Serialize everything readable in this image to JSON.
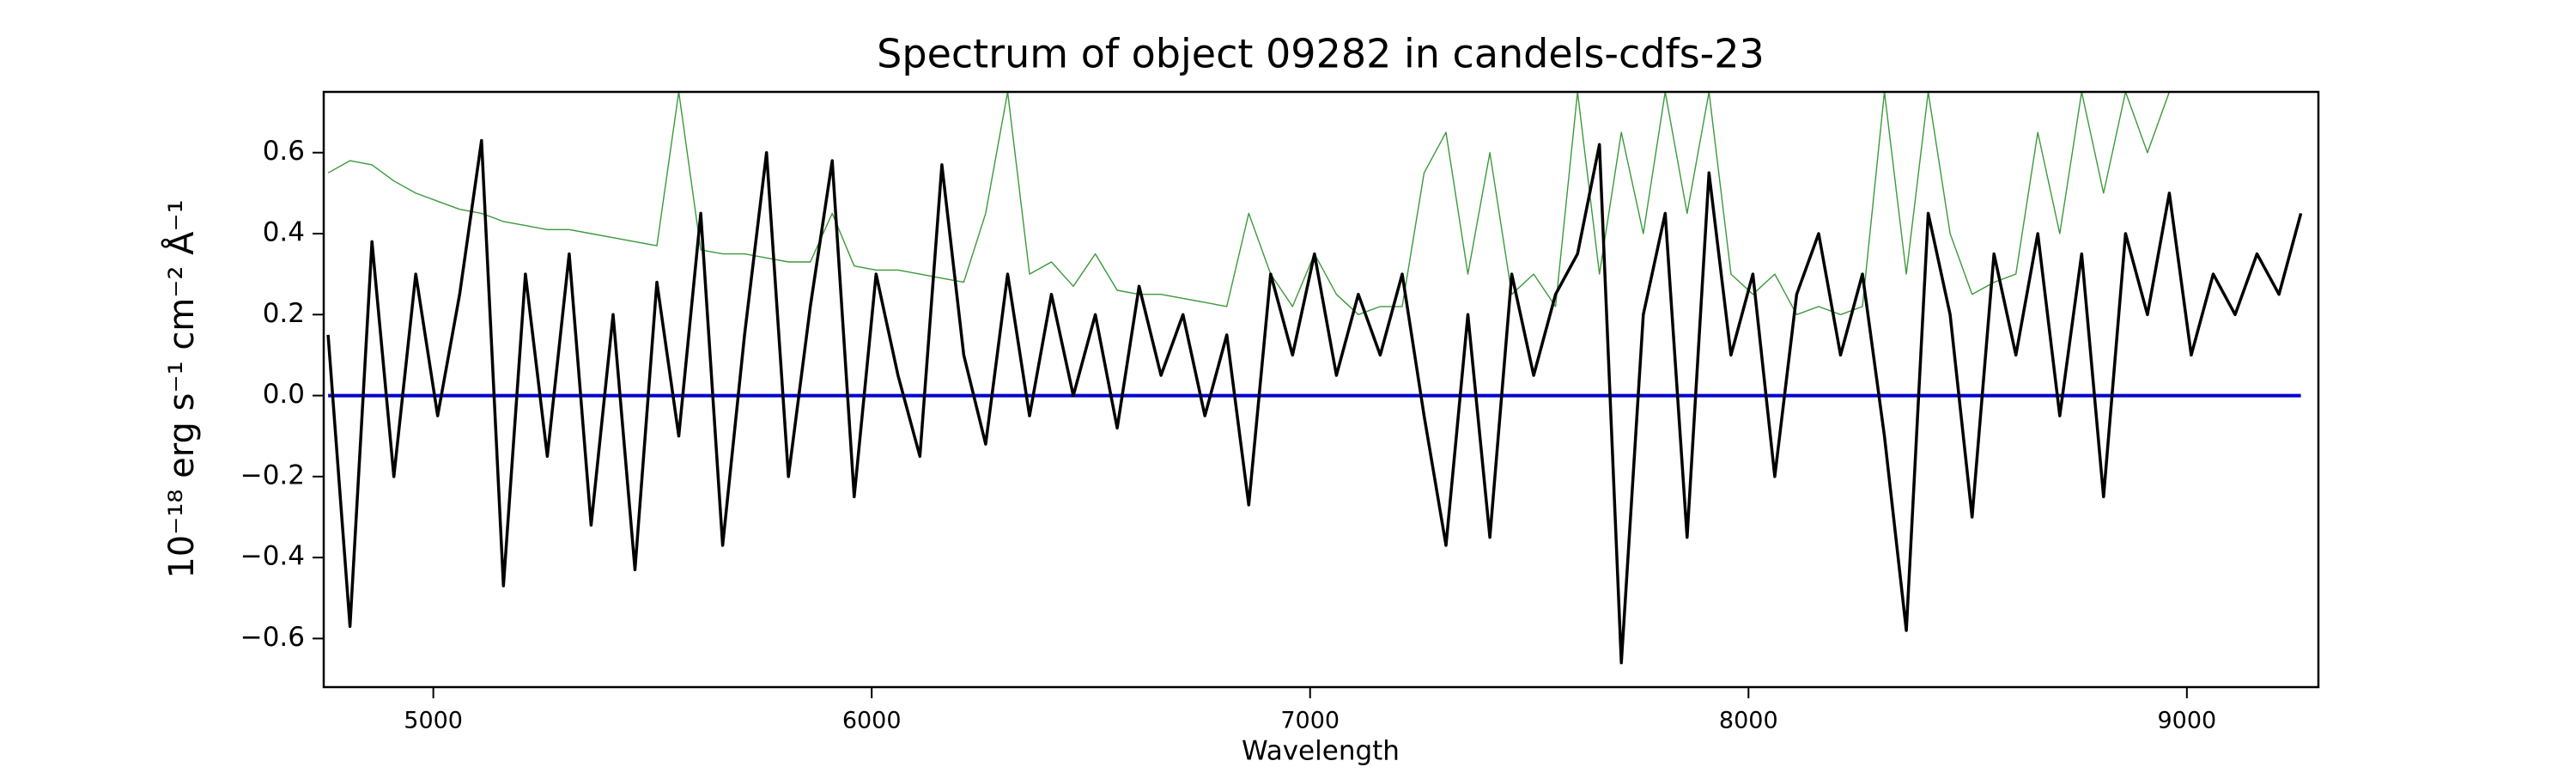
{
  "chart_data": {
    "type": "line",
    "title": "Spectrum of object 09282 in candels-cdfs-23",
    "xlabel": "Wavelength",
    "ylabel": "10⁻¹⁸ erg s⁻¹ cm⁻² Å⁻¹",
    "x": [
      4760,
      4810,
      4860,
      4910,
      4960,
      5010,
      5060,
      5110,
      5160,
      5210,
      5260,
      5310,
      5360,
      5410,
      5460,
      5510,
      5560,
      5610,
      5660,
      5710,
      5760,
      5810,
      5860,
      5910,
      5960,
      6010,
      6060,
      6110,
      6160,
      6210,
      6260,
      6310,
      6360,
      6410,
      6460,
      6510,
      6560,
      6610,
      6660,
      6710,
      6760,
      6810,
      6860,
      6910,
      6960,
      7010,
      7060,
      7110,
      7160,
      7210,
      7260,
      7310,
      7360,
      7410,
      7460,
      7510,
      7560,
      7610,
      7660,
      7710,
      7760,
      7810,
      7860,
      7910,
      7960,
      8010,
      8060,
      8110,
      8160,
      8210,
      8260,
      8310,
      8360,
      8410,
      8460,
      8510,
      8560,
      8610,
      8660,
      8710,
      8760,
      8810,
      8860,
      8910,
      8960,
      9010,
      9060,
      9110,
      9160,
      9210,
      9260
    ],
    "series": [
      {
        "color": "#3a9a3a",
        "width": 1.4,
        "values": [
          0.55,
          0.58,
          0.57,
          0.53,
          0.5,
          0.48,
          0.46,
          0.45,
          0.43,
          0.42,
          0.41,
          0.41,
          0.4,
          0.39,
          0.38,
          0.37,
          0.75,
          0.36,
          0.35,
          0.35,
          0.34,
          0.33,
          0.33,
          0.45,
          0.32,
          0.31,
          0.31,
          0.3,
          0.29,
          0.28,
          0.45,
          0.75,
          0.3,
          0.33,
          0.27,
          0.35,
          0.26,
          0.25,
          0.25,
          0.24,
          0.23,
          0.22,
          0.45,
          0.3,
          0.22,
          0.35,
          0.25,
          0.2,
          0.22,
          0.22,
          0.55,
          0.65,
          0.3,
          0.6,
          0.25,
          0.3,
          0.22,
          0.75,
          0.3,
          0.65,
          0.4,
          0.75,
          0.45,
          0.75,
          0.3,
          0.25,
          0.3,
          0.2,
          0.22,
          0.2,
          0.22,
          0.75,
          0.3,
          0.75,
          0.4,
          0.25,
          0.28,
          0.3,
          0.65,
          0.4,
          0.75,
          0.5,
          0.75,
          0.6,
          0.75,
          null,
          null,
          null,
          null,
          null,
          null
        ]
      },
      {
        "color": "#0000cc",
        "width": 4,
        "values": [
          0,
          0,
          0,
          0,
          0,
          0,
          0,
          0,
          0,
          0,
          0,
          0,
          0,
          0,
          0,
          0,
          0,
          0,
          0,
          0,
          0,
          0,
          0,
          0,
          0,
          0,
          0,
          0,
          0,
          0,
          0,
          0,
          0,
          0,
          0,
          0,
          0,
          0,
          0,
          0,
          0,
          0,
          0,
          0,
          0,
          0,
          0,
          0,
          0,
          0,
          0,
          0,
          0,
          0,
          0,
          0,
          0,
          0,
          0,
          0,
          0,
          0,
          0,
          0,
          0,
          0,
          0,
          0,
          0,
          0,
          0,
          0,
          0,
          0,
          0,
          0,
          0,
          0,
          0,
          0,
          0,
          0,
          0,
          0,
          0,
          0,
          0,
          0,
          0,
          0,
          0
        ]
      },
      {
        "color": "#000000",
        "width": 3.5,
        "values": [
          0.15,
          -0.57,
          0.38,
          -0.2,
          0.3,
          -0.05,
          0.25,
          0.63,
          -0.47,
          0.3,
          -0.15,
          0.35,
          -0.32,
          0.2,
          -0.43,
          0.28,
          -0.1,
          0.45,
          -0.37,
          0.15,
          0.6,
          -0.2,
          0.22,
          0.58,
          -0.25,
          0.3,
          0.05,
          -0.15,
          0.57,
          0.1,
          -0.12,
          0.3,
          -0.05,
          0.25,
          0.0,
          0.2,
          -0.08,
          0.27,
          0.05,
          0.2,
          -0.05,
          0.15,
          -0.27,
          0.3,
          0.1,
          0.35,
          0.05,
          0.25,
          0.1,
          0.3,
          -0.05,
          -0.37,
          0.2,
          -0.35,
          0.3,
          0.05,
          0.25,
          0.35,
          0.62,
          -0.66,
          0.2,
          0.45,
          -0.35,
          0.55,
          0.1,
          0.3,
          -0.2,
          0.25,
          0.4,
          0.1,
          0.3,
          -0.1,
          -0.58,
          0.45,
          0.2,
          -0.3,
          0.35,
          0.1,
          0.4,
          -0.05,
          0.35,
          -0.25,
          0.4,
          0.2,
          0.5,
          0.1,
          0.3,
          0.2,
          0.35,
          0.25,
          0.45
        ]
      }
    ],
    "xlim": [
      4750,
      9300
    ],
    "ylim": [
      -0.72,
      0.75
    ],
    "xticks": [
      5000,
      6000,
      7000,
      8000,
      9000
    ],
    "yticks": [
      {
        "value": -0.6,
        "label": "−0.6"
      },
      {
        "value": -0.4,
        "label": "−0.4"
      },
      {
        "value": -0.2,
        "label": "−0.2"
      },
      {
        "value": 0,
        "label": "0.0"
      },
      0.2,
      0.4,
      0.6
    ],
    "grid": false
  }
}
